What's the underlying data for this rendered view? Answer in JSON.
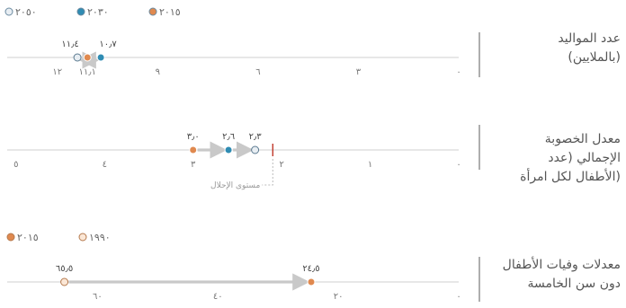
{
  "colors": {
    "y2050": "#e8eef3",
    "y2030": "#2f8cb3",
    "y2015": "#e0894f",
    "y1990": "#fbe7d6",
    "arrow": "#c9c9c9",
    "axis": "#cfcfcf",
    "replacement": "#c0392b",
    "divider": "#777777"
  },
  "legend_top": [
    {
      "key": "y2050",
      "label": "٢٠٥٠"
    },
    {
      "key": "y2030",
      "label": "٢٠٣٠"
    },
    {
      "key": "y2015",
      "label": "٢٠١٥"
    }
  ],
  "legend_bottom": [
    {
      "key": "y2015",
      "label": "٢٠١٥"
    },
    {
      "key": "y1990",
      "label": "١٩٩٠"
    }
  ],
  "chart_data": [
    {
      "type": "scatter",
      "label_lines": [
        "عدد المواليد",
        "(بالملايين)"
      ],
      "xlim": [
        0,
        13.5
      ],
      "reversed": true,
      "ticks": [
        {
          "value": 0,
          "label": "٠"
        },
        {
          "value": 3,
          "label": "٣"
        },
        {
          "value": 6,
          "label": "٦"
        },
        {
          "value": 9,
          "label": "٩"
        },
        {
          "value": 11.1,
          "label": "١١٫١"
        },
        {
          "value": 12,
          "label": "١٢"
        }
      ],
      "points": [
        {
          "key": "y2015",
          "value": 11.1,
          "label": ""
        },
        {
          "key": "y2030",
          "value": 10.7,
          "label": "١٠٫٧"
        },
        {
          "key": "y2050",
          "value": 11.4,
          "label": "١١٫٤"
        }
      ]
    },
    {
      "type": "scatter",
      "label_lines": [
        "معدل الخصوبة",
        "الإجمالي (عدد",
        "الأطفال لكل امرأة)"
      ],
      "xlim": [
        0,
        5.1
      ],
      "reversed": true,
      "ticks": [
        {
          "value": 0,
          "label": "٠"
        },
        {
          "value": 1,
          "label": "١"
        },
        {
          "value": 2,
          "label": "٢"
        },
        {
          "value": 3,
          "label": "٣"
        },
        {
          "value": 4,
          "label": "٤"
        },
        {
          "value": 5,
          "label": "٥"
        }
      ],
      "points": [
        {
          "key": "y2015",
          "value": 3.0,
          "label": "٣٫٠"
        },
        {
          "key": "y2030",
          "value": 2.6,
          "label": "٢٫٦"
        },
        {
          "key": "y2050",
          "value": 2.3,
          "label": "٢٫٣"
        }
      ],
      "replacement_level": {
        "value": 2.1,
        "label": "مستوى الإحلال"
      }
    },
    {
      "type": "scatter",
      "label_lines": [
        "معدلات وفيات الأطفال",
        "دون سن الخامسة"
      ],
      "xlim": [
        0,
        75
      ],
      "reversed": true,
      "ticks": [
        {
          "value": 0,
          "label": "٠"
        },
        {
          "value": 20,
          "label": "٢٠"
        },
        {
          "value": 40,
          "label": "٤٠"
        },
        {
          "value": 60,
          "label": "٦٠"
        }
      ],
      "points": [
        {
          "key": "y1990",
          "value": 65.5,
          "label": "٦٥٫٥"
        },
        {
          "key": "y2015",
          "value": 24.5,
          "label": "٢٤٫٥"
        }
      ]
    }
  ]
}
